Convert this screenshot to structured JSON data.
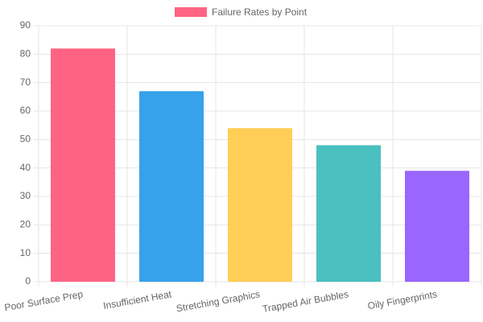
{
  "chart_data": {
    "type": "bar",
    "categories": [
      "Poor Surface Prep",
      "Insufficient Heat",
      "Stretching Graphics",
      "Trapped Air Bubbles",
      "Oily Fingerprints"
    ],
    "series": [
      {
        "name": "Failure Rates by Point",
        "color": "#ff6384",
        "colors": [
          "#ff6384",
          "#36a2eb",
          "#ffce56",
          "#4bc0c0",
          "#9966ff"
        ],
        "values": [
          82,
          67,
          54,
          48,
          39
        ]
      }
    ],
    "ylim": [
      0,
      90
    ],
    "yticks": [
      0,
      10,
      20,
      30,
      40,
      50,
      60,
      70,
      80,
      90
    ],
    "grid": true,
    "legend": "top"
  }
}
